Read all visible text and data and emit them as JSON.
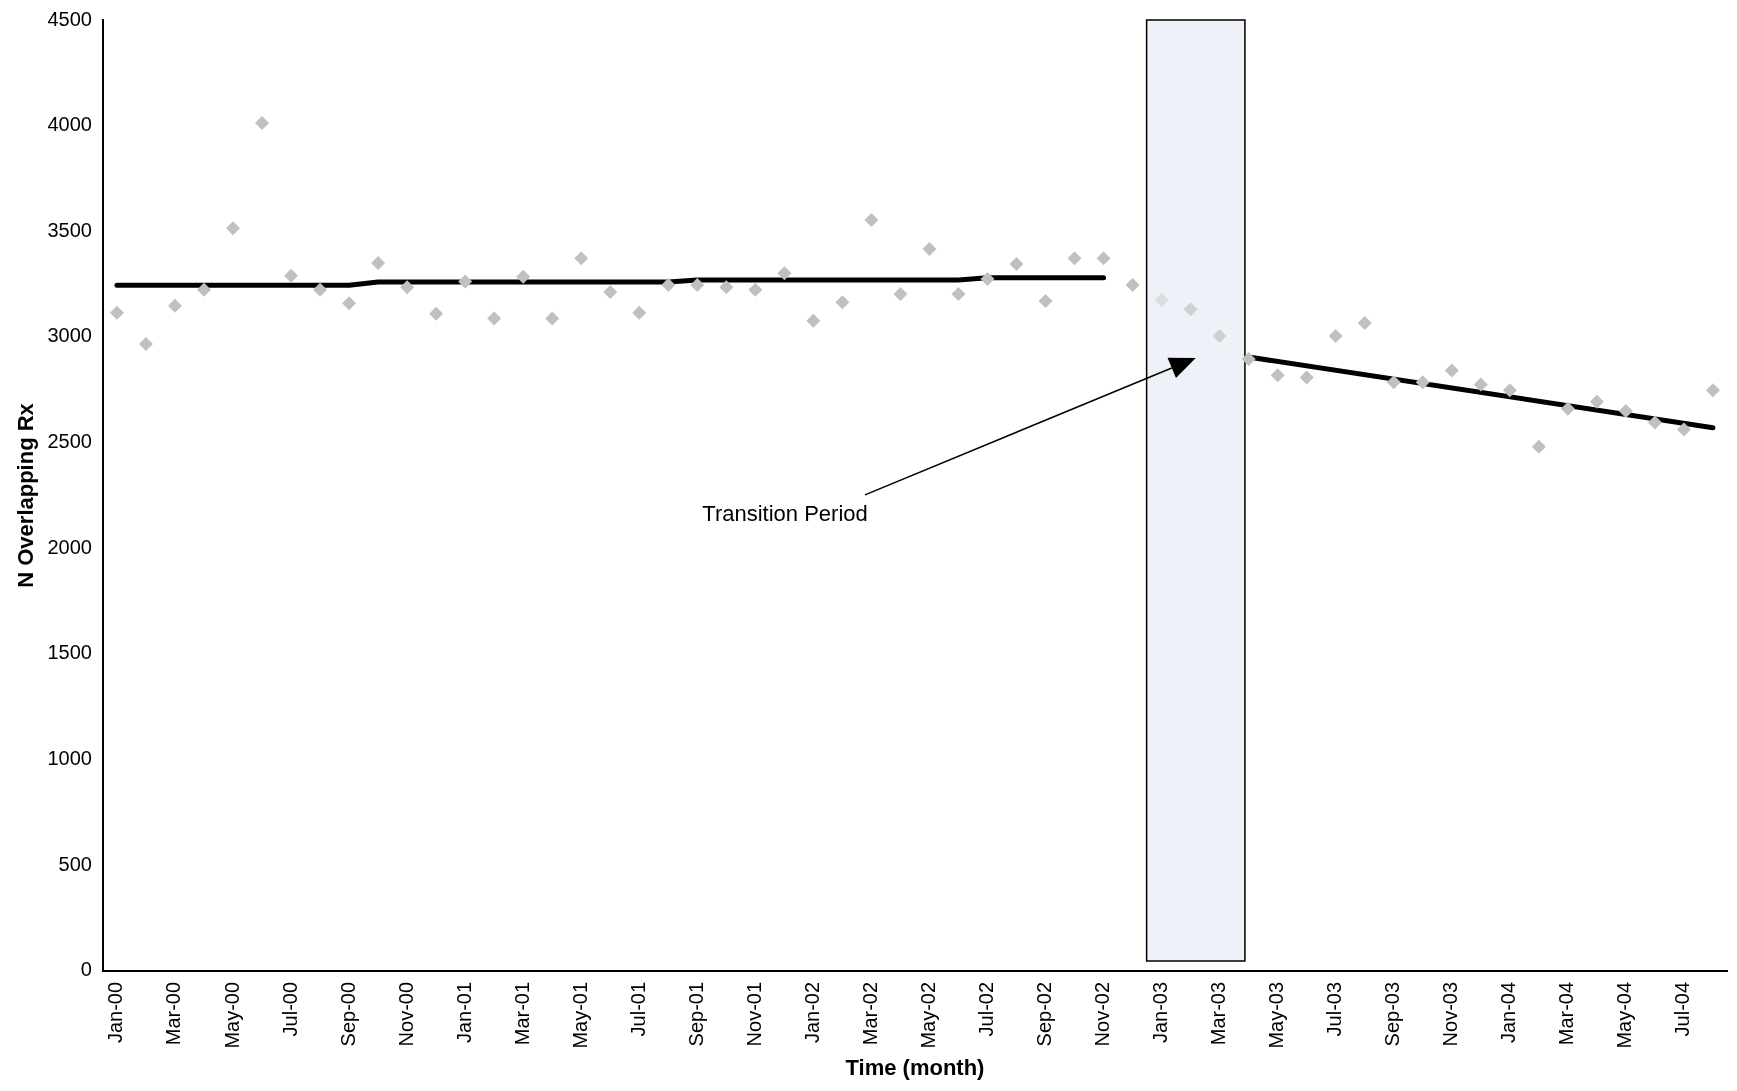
{
  "chart_data": {
    "type": "scatter",
    "xlabel": "Time (month)",
    "ylabel": "N Overlapping Rx",
    "xlim": [
      "1999-12-17",
      "2004-08-16"
    ],
    "xticks": [
      {
        "value": "2000-01",
        "label": "Jan-00"
      },
      {
        "value": "2000-03",
        "label": "Mar-00"
      },
      {
        "value": "2000-05",
        "label": "May-00"
      },
      {
        "value": "2000-07",
        "label": "Jul-00"
      },
      {
        "value": "2000-09",
        "label": "Sep-00"
      },
      {
        "value": "2000-11",
        "label": "Nov-00"
      },
      {
        "value": "2001-01",
        "label": "Jan-01"
      },
      {
        "value": "2001-03",
        "label": "Mar-01"
      },
      {
        "value": "2001-05",
        "label": "May-01"
      },
      {
        "value": "2001-07",
        "label": "Jul-01"
      },
      {
        "value": "2001-09",
        "label": "Sep-01"
      },
      {
        "value": "2001-11",
        "label": "Nov-01"
      },
      {
        "value": "2002-01",
        "label": "Jan-02"
      },
      {
        "value": "2002-03",
        "label": "Mar-02"
      },
      {
        "value": "2002-05",
        "label": "May-02"
      },
      {
        "value": "2002-07",
        "label": "Jul-02"
      },
      {
        "value": "2002-09",
        "label": "Sep-02"
      },
      {
        "value": "2002-11",
        "label": "Nov-02"
      },
      {
        "value": "2003-01",
        "label": "Jan-03"
      },
      {
        "value": "2003-03",
        "label": "Mar-03"
      },
      {
        "value": "2003-05",
        "label": "May-03"
      },
      {
        "value": "2003-07",
        "label": "Jul-03"
      },
      {
        "value": "2003-09",
        "label": "Sep-03"
      },
      {
        "value": "2003-11",
        "label": "Nov-03"
      },
      {
        "value": "2004-01",
        "label": "Jan-04"
      },
      {
        "value": "2004-03",
        "label": "Mar-04"
      },
      {
        "value": "2004-05",
        "label": "May-04"
      },
      {
        "value": "2004-07",
        "label": "Jul-04"
      }
    ],
    "ylim": [
      0,
      4500
    ],
    "yticks": [
      0,
      500,
      1000,
      1500,
      2000,
      2500,
      3000,
      3500,
      4000,
      4500
    ],
    "grid": false,
    "legend": false,
    "marker": "diamond",
    "annotations": [
      "Transition Period"
    ],
    "bands": [
      {
        "axis": "x",
        "from": "2002-12-16",
        "to": "2003-03-28",
        "color": "#eef2f8"
      }
    ],
    "series": [
      {
        "x": [
          "2000-01",
          "2000-02",
          "2000-03",
          "2000-04",
          "2000-05",
          "2000-06",
          "2000-07",
          "2000-08",
          "2000-09",
          "2000-10",
          "2000-11",
          "2000-12",
          "2001-01",
          "2001-02",
          "2001-03",
          "2001-04",
          "2001-05",
          "2001-06",
          "2001-07",
          "2001-08",
          "2001-09",
          "2001-10",
          "2001-11",
          "2001-12",
          "2002-01",
          "2002-02",
          "2002-03",
          "2002-04",
          "2002-05",
          "2002-06",
          "2002-07",
          "2002-08",
          "2002-09",
          "2002-10",
          "2002-11",
          "2002-12",
          "2003-01",
          "2003-02",
          "2003-03",
          "2003-04",
          "2003-05",
          "2003-06",
          "2003-07",
          "2003-08",
          "2003-09",
          "2003-10",
          "2003-11",
          "2003-12",
          "2004-01",
          "2004-02",
          "2004-03",
          "2004-04",
          "2004-05",
          "2004-06",
          "2004-07",
          "2004-08"
        ],
        "values": [
          3115,
          2967,
          3148,
          3224,
          3515,
          4013,
          3290,
          3224,
          3159,
          3350,
          3235,
          3110,
          3263,
          3088,
          3285,
          3088,
          3372,
          3213,
          3115,
          3246,
          3246,
          3235,
          3224,
          3301,
          3077,
          3164,
          3553,
          3203,
          3416,
          3203,
          3274,
          3345,
          3170,
          3372,
          3372,
          3246,
          3175,
          3131,
          3005,
          2896,
          2819,
          2808,
          3005,
          3066,
          2786,
          2786,
          2841,
          2775,
          2748,
          2480,
          2660,
          2693,
          2650,
          2595,
          2562,
          2748
        ],
        "colors": [
          "#c0c0c0",
          "#c0c0c0",
          "#c0c0c0",
          "#c0c0c0",
          "#c0c0c0",
          "#c0c0c0",
          "#c0c0c0",
          "#c0c0c0",
          "#c0c0c0",
          "#c0c0c0",
          "#c0c0c0",
          "#c0c0c0",
          "#c0c0c0",
          "#c0c0c0",
          "#c0c0c0",
          "#c0c0c0",
          "#c0c0c0",
          "#c0c0c0",
          "#c0c0c0",
          "#c0c0c0",
          "#c0c0c0",
          "#c0c0c0",
          "#c0c0c0",
          "#c0c0c0",
          "#c0c0c0",
          "#c0c0c0",
          "#c0c0c0",
          "#c0c0c0",
          "#c0c0c0",
          "#c0c0c0",
          "#c0c0c0",
          "#c0c0c0",
          "#c0c0c0",
          "#c0c0c0",
          "#c0c0c0",
          "#c0c0c0",
          "#dcdcdc",
          "#d0d0d0",
          "#d0d0d0",
          "#c0c0c0",
          "#c0c0c0",
          "#c0c0c0",
          "#c0c0c0",
          "#c0c0c0",
          "#c0c0c0",
          "#c0c0c0",
          "#c0c0c0",
          "#c0c0c0",
          "#c0c0c0",
          "#c0c0c0",
          "#c0c0c0",
          "#c0c0c0",
          "#c0c0c0",
          "#c0c0c0",
          "#c0c0c0",
          "#c0c0c0"
        ]
      },
      {
        "type": "line",
        "color": "#000000",
        "marker": "none",
        "line_style": "solid",
        "x": [
          "2000-01",
          "2000-09",
          "2000-10",
          "2001-08",
          "2001-09",
          "2002-06",
          "2002-07",
          "2002-11"
        ],
        "values": [
          3245,
          3245,
          3260,
          3260,
          3270,
          3270,
          3280,
          3280
        ]
      },
      {
        "type": "line",
        "color": "#000000",
        "marker": "none",
        "line_style": "solid",
        "x": [
          "2003-04",
          "2004-08"
        ],
        "values": [
          2905,
          2570
        ]
      }
    ]
  }
}
